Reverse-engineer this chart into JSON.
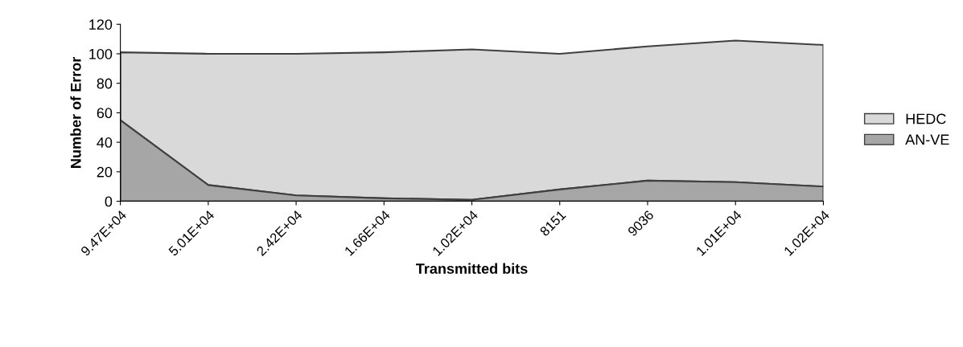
{
  "chart_data": {
    "type": "area",
    "xlabel": "Transmitted bits",
    "ylabel": "Number of Error",
    "categories": [
      "9.47E+04",
      "5.01E+04",
      "2.42E+04",
      "1.66E+04",
      "1.02E+04",
      "8151",
      "9036",
      "1.01E+04",
      "1.02E+04"
    ],
    "series": [
      {
        "name": "AN-VE",
        "color": "#a6a6a6",
        "values": [
          55,
          11,
          4,
          2,
          1,
          8,
          14,
          13,
          10
        ]
      },
      {
        "name": "HEDC",
        "color": "#d9d9d9",
        "values": [
          101,
          100,
          100,
          101,
          103,
          100,
          105,
          109,
          106
        ]
      }
    ],
    "ylim": [
      0,
      120
    ],
    "yticks": [
      0,
      20,
      40,
      60,
      80,
      100,
      120
    ],
    "legend": "right",
    "grid": false
  }
}
